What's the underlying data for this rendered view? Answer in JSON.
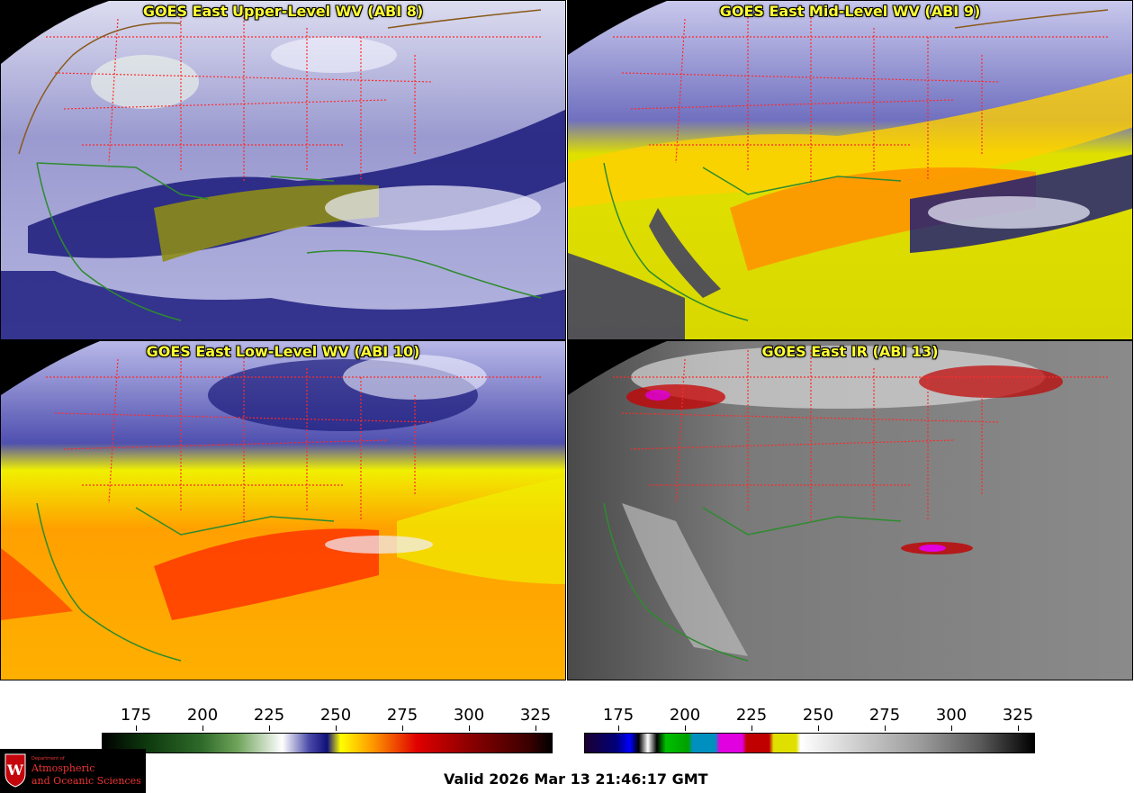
{
  "panels": [
    {
      "title": "GOES East Upper-Level WV (ABI 8)"
    },
    {
      "title": "GOES East Mid-Level WV (ABI 9)"
    },
    {
      "title": "GOES East Low-Level WV (ABI 10)"
    },
    {
      "title": "GOES East IR (ABI 13)"
    }
  ],
  "colorbars": {
    "wv": {
      "ticks": [
        "175",
        "200",
        "225",
        "250",
        "275",
        "300",
        "325"
      ]
    },
    "ir": {
      "ticks": [
        "175",
        "200",
        "225",
        "250",
        "275",
        "300",
        "325"
      ]
    }
  },
  "valid_time": "Valid 2026 Mar 13 21:46:17 GMT",
  "logo": {
    "department": "Department of",
    "line1": "Atmospheric",
    "line2": "and Oceanic Sciences",
    "crest_letter": "W"
  },
  "colors": {
    "title_text": "#ffff33",
    "state_borders": "#ff2a2a",
    "coastline": "#2e8b2e",
    "country_borders": "#8a5a1a"
  }
}
